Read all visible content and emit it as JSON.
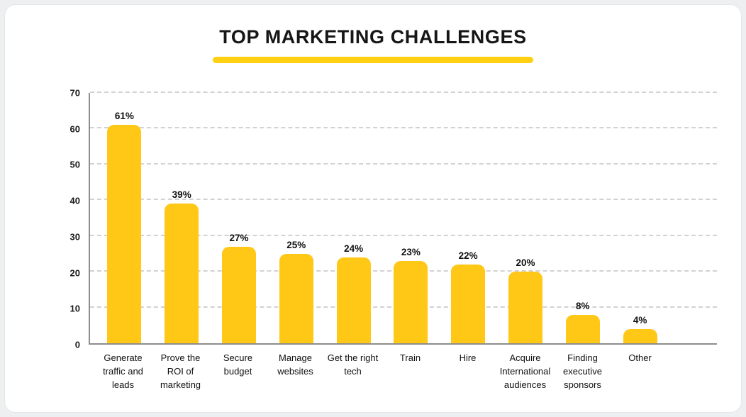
{
  "page": {
    "background": "#edeff1"
  },
  "card": {
    "background": "#ffffff"
  },
  "header": {
    "title": "TOP MARKETING CHALLENGES",
    "underline_color": "#ffd012"
  },
  "chart_data": {
    "type": "bar",
    "title": "TOP MARKETING CHALLENGES",
    "categories": [
      "Generate traffic and leads",
      "Prove the ROI of marketing",
      "Secure budget",
      "Manage websites",
      "Get the right tech",
      "Train",
      "Hire",
      "Acquire International audiences",
      "Finding executive sponsors",
      "Other"
    ],
    "values": [
      61,
      39,
      27,
      25,
      24,
      23,
      22,
      20,
      8,
      4
    ],
    "value_labels": [
      "61%",
      "39%",
      "27%",
      "25%",
      "24%",
      "23%",
      "22%",
      "20%",
      "8%",
      "4%"
    ],
    "bar_color": "#ffc716",
    "xlabel": "",
    "ylabel": "",
    "ylim": [
      0,
      70
    ],
    "yticks": [
      0,
      10,
      20,
      30,
      40,
      50,
      60,
      70
    ],
    "grid": "horizontal-dashed",
    "legend": "none"
  }
}
